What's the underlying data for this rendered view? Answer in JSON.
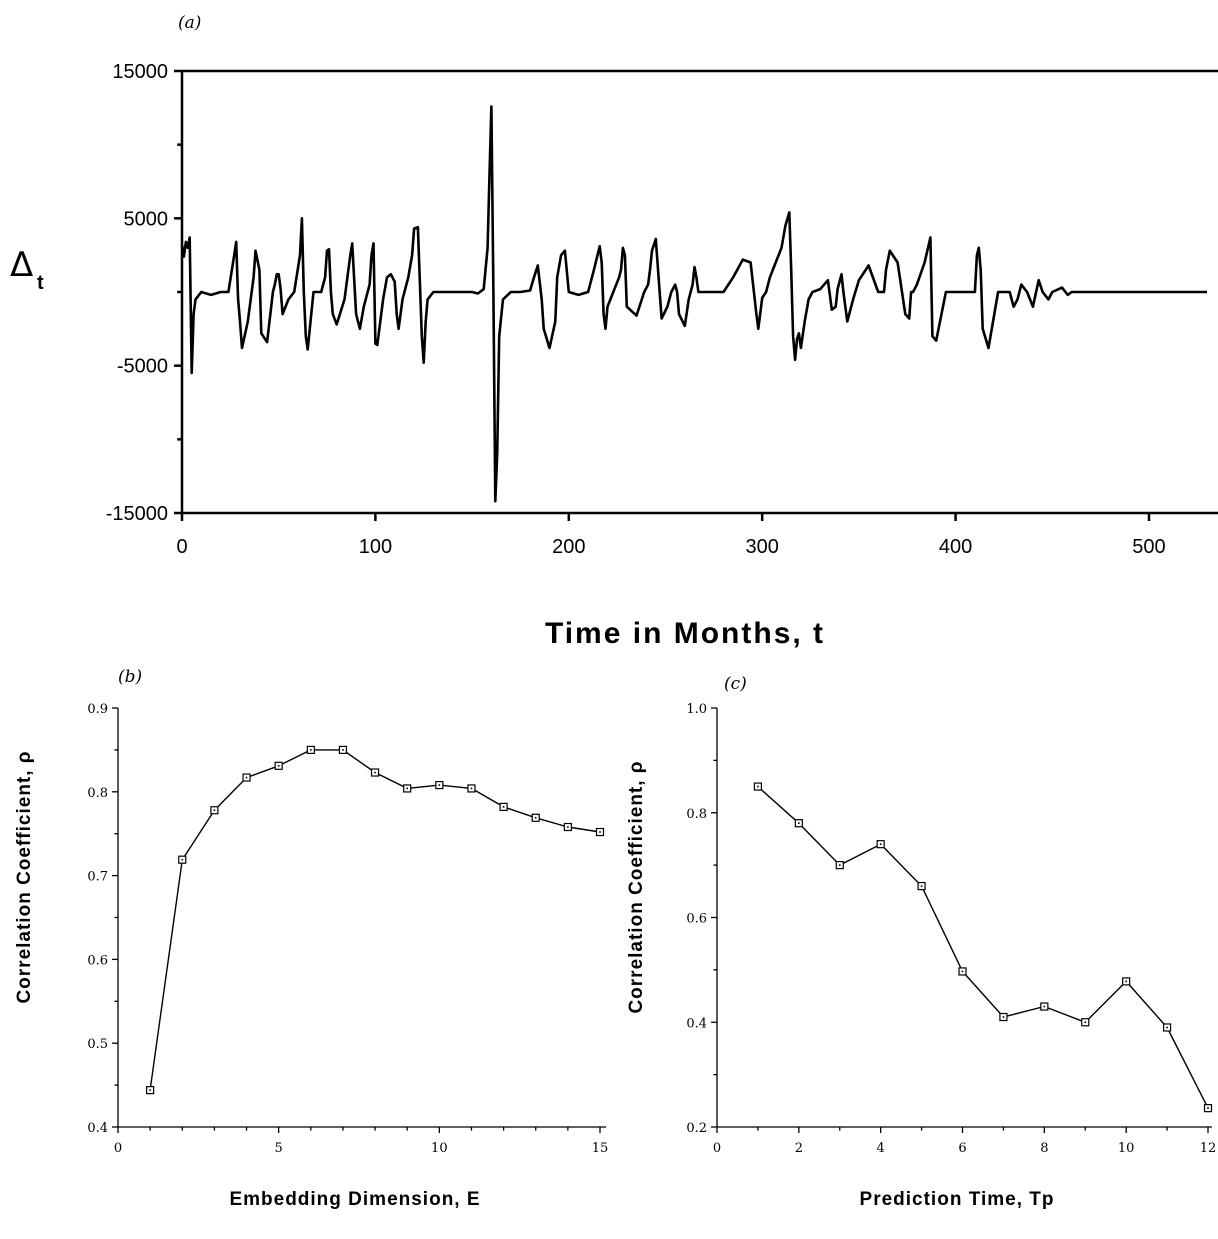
{
  "chart_data": [
    {
      "id": "a",
      "panel": "(a)",
      "type": "line",
      "xlabel": "Time in Months, t",
      "ylabel": "Δ",
      "ylabel_subscript": "t",
      "xlim": [
        0,
        530
      ],
      "ylim": [
        -15000,
        15000
      ],
      "xticks": [
        0,
        100,
        200,
        300,
        400,
        500
      ],
      "yticks": [
        -15000,
        -5000,
        5000,
        15000
      ],
      "x": [
        0,
        1,
        2,
        3,
        4,
        5,
        6,
        7,
        10,
        15,
        20,
        24,
        27,
        28,
        29,
        30,
        31,
        34,
        37,
        38,
        40,
        41,
        44,
        47,
        48,
        49,
        50,
        51,
        52,
        55,
        58,
        61,
        62,
        63,
        64,
        65,
        68,
        72,
        74,
        75,
        76,
        77,
        78,
        80,
        84,
        87,
        88,
        90,
        92,
        94,
        97,
        98,
        99,
        100,
        101,
        104,
        106,
        108,
        110,
        111,
        112,
        114,
        117,
        119,
        120,
        122,
        124,
        125,
        126,
        127,
        130,
        135,
        140,
        145,
        150,
        153,
        156,
        158,
        159,
        160,
        161,
        162,
        163,
        164,
        166,
        170,
        175,
        180,
        182,
        184,
        186,
        187,
        190,
        193,
        194,
        196,
        198,
        200,
        205,
        210,
        213,
        216,
        217,
        218,
        219,
        220,
        223,
        226,
        227,
        228,
        229,
        230,
        235,
        239,
        241,
        242,
        243,
        245,
        248,
        251,
        253,
        255,
        256,
        257,
        260,
        262,
        264,
        265,
        266,
        267,
        270,
        275,
        280,
        285,
        290,
        294,
        297,
        298,
        300,
        302,
        304,
        307,
        310,
        312,
        314,
        315,
        316,
        317,
        318,
        319,
        320,
        322,
        324,
        326,
        330,
        334,
        336,
        338,
        339,
        341,
        342,
        344,
        347,
        350,
        355,
        360,
        362,
        363,
        364,
        366,
        370,
        374,
        376,
        377,
        378,
        380,
        384,
        387,
        388,
        390,
        395,
        400,
        405,
        408,
        410,
        411,
        412,
        413,
        414,
        417,
        420,
        422,
        425,
        428,
        430,
        432,
        434,
        437,
        440,
        443,
        445,
        448,
        450,
        455,
        458,
        460,
        462,
        465,
        470,
        475,
        480,
        485,
        490,
        495,
        500,
        505,
        510,
        515,
        520,
        525,
        530
      ],
      "y": [
        3200,
        2400,
        3400,
        3000,
        3700,
        -5500,
        -1500,
        -500,
        0,
        -200,
        0,
        0,
        2500,
        3400,
        -500,
        -2000,
        -3800,
        -2000,
        1000,
        2800,
        1500,
        -2800,
        -3400,
        0,
        500,
        1200,
        1200,
        200,
        -1500,
        -500,
        0,
        2500,
        5000,
        0,
        -3000,
        -3900,
        0,
        0,
        1000,
        2800,
        2900,
        0,
        -1500,
        -2200,
        -500,
        2500,
        3300,
        -1500,
        -2500,
        -1000,
        500,
        2500,
        3300,
        -3500,
        -3600,
        -500,
        1000,
        1200,
        700,
        -1500,
        -2500,
        -500,
        1000,
        2500,
        4300,
        4400,
        -3000,
        -4800,
        -2000,
        -500,
        0,
        0,
        0,
        0,
        0,
        -100,
        200,
        3000,
        8000,
        12600,
        0,
        -14200,
        -11000,
        -3000,
        -500,
        0,
        0,
        100,
        1000,
        1800,
        -500,
        -2500,
        -3800,
        -2000,
        1000,
        2500,
        2800,
        0,
        -200,
        0,
        1500,
        3100,
        2000,
        -1500,
        -2500,
        -1000,
        0,
        1000,
        1500,
        3000,
        2500,
        -1000,
        -1600,
        0,
        500,
        1500,
        2800,
        3600,
        -1800,
        -1000,
        0,
        500,
        0,
        -1500,
        -2300,
        -500,
        500,
        1700,
        1000,
        0,
        0,
        0,
        0,
        1000,
        2200,
        2000,
        -1500,
        -2500,
        -400,
        0,
        1000,
        2000,
        3000,
        4500,
        5400,
        1500,
        -3000,
        -4600,
        -3200,
        -2800,
        -3800,
        -2000,
        -500,
        0,
        200,
        800,
        -1200,
        -1000,
        200,
        1200,
        0,
        -2000,
        -500,
        800,
        1800,
        0,
        0,
        0,
        1500,
        2800,
        2000,
        -1500,
        -1800,
        0,
        0,
        500,
        2000,
        3700,
        -3000,
        -3300,
        0,
        0,
        0,
        0,
        0,
        2500,
        3000,
        1500,
        -2500,
        -3800,
        -1500,
        0,
        0,
        0,
        -1000,
        -500,
        500,
        0,
        -1000,
        800,
        0,
        -500,
        0,
        300,
        -200,
        0,
        0,
        0,
        0,
        0,
        0,
        0,
        0,
        0,
        0,
        0,
        0,
        0,
        0,
        0,
        0
      ]
    },
    {
      "id": "b",
      "panel": "(b)",
      "type": "line",
      "xlabel": "Embedding Dimension, E",
      "ylabel": "Correlation Coefficient, ρ",
      "xlim": [
        0,
        15
      ],
      "ylim": [
        0.4,
        0.9
      ],
      "xticks": [
        0,
        5,
        10,
        15
      ],
      "yticks": [
        0.4,
        0.5,
        0.6,
        0.7,
        0.8,
        0.9
      ],
      "x": [
        1,
        2,
        3,
        4,
        5,
        6,
        7,
        8,
        9,
        10,
        11,
        12,
        13,
        14,
        15
      ],
      "y": [
        0.444,
        0.719,
        0.778,
        0.817,
        0.831,
        0.85,
        0.85,
        0.823,
        0.804,
        0.808,
        0.804,
        0.782,
        0.769,
        0.758,
        0.752
      ]
    },
    {
      "id": "c",
      "panel": "(c)",
      "type": "line",
      "xlabel": "Prediction Time, Tp",
      "ylabel": "Correlation Coefficient, ρ",
      "xlim": [
        0,
        12
      ],
      "ylim": [
        0.2,
        1.0
      ],
      "xticks": [
        0,
        2,
        4,
        6,
        8,
        10,
        12
      ],
      "yticks": [
        0.2,
        0.4,
        0.6,
        0.8,
        1.0
      ],
      "x": [
        1,
        2,
        3,
        4,
        5,
        6,
        7,
        8,
        9,
        10,
        11,
        12
      ],
      "y": [
        0.85,
        0.78,
        0.7,
        0.74,
        0.66,
        0.497,
        0.41,
        0.43,
        0.4,
        0.478,
        0.39,
        0.236
      ]
    }
  ]
}
